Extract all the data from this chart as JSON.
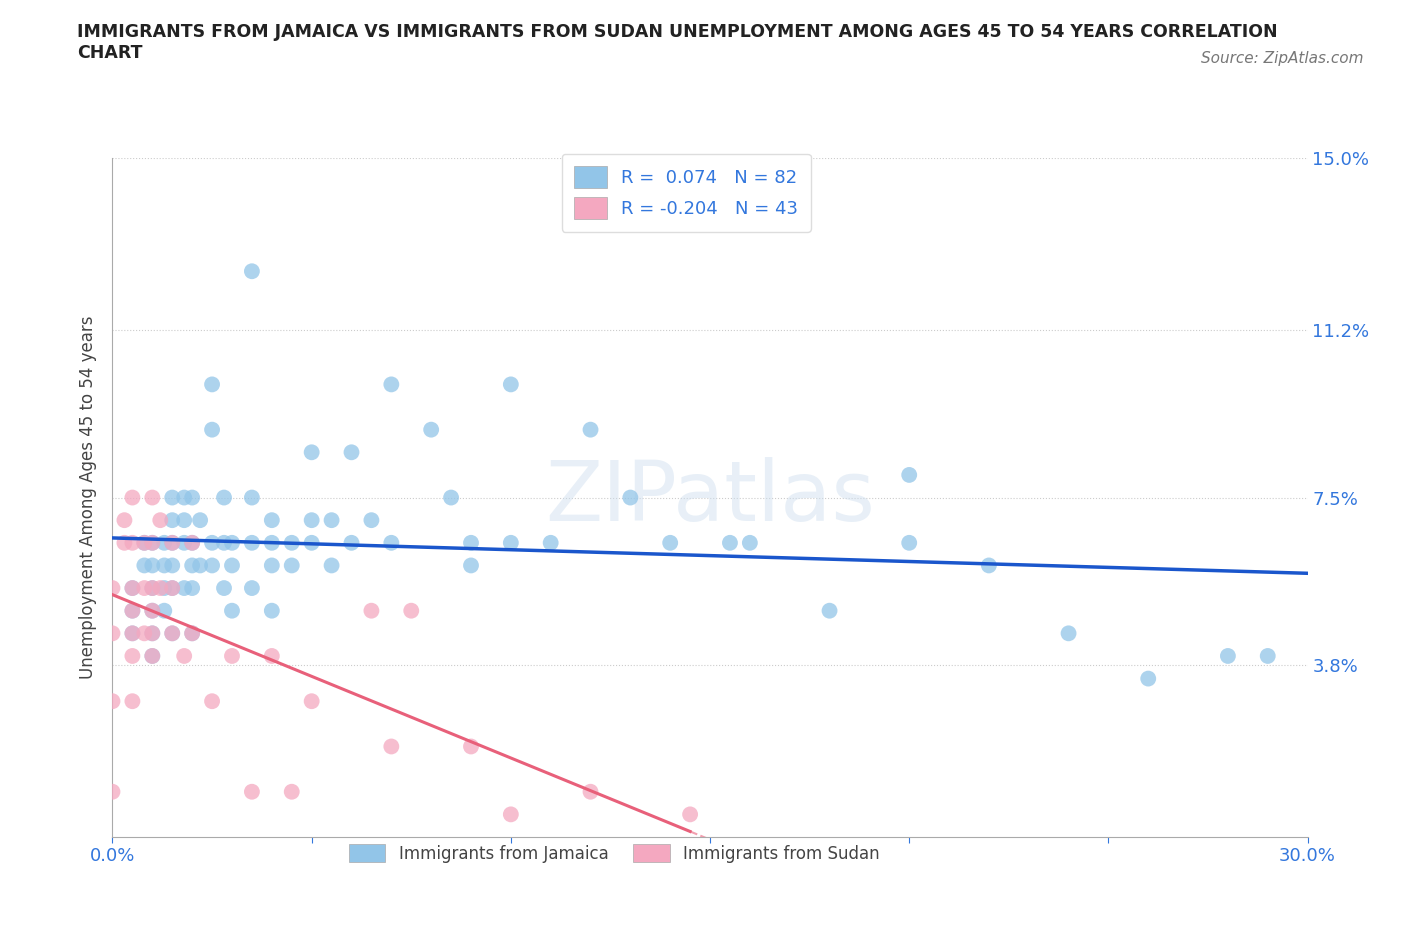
{
  "title": "IMMIGRANTS FROM JAMAICA VS IMMIGRANTS FROM SUDAN UNEMPLOYMENT AMONG AGES 45 TO 54 YEARS CORRELATION\nCHART",
  "source": "Source: ZipAtlas.com",
  "ylabel": "Unemployment Among Ages 45 to 54 years",
  "xlim": [
    0.0,
    0.3
  ],
  "ylim": [
    0.0,
    0.15
  ],
  "R_jamaica": 0.074,
  "N_jamaica": 82,
  "R_sudan": -0.204,
  "N_sudan": 43,
  "color_jamaica": "#92C5E8",
  "color_sudan": "#F4A8C0",
  "color_jamaica_line": "#1A56CC",
  "color_sudan_line": "#E8607A",
  "background_color": "#FFFFFF",
  "watermark": "ZIPatlas",
  "jamaica_x": [
    0.005,
    0.005,
    0.005,
    0.008,
    0.008,
    0.01,
    0.01,
    0.01,
    0.01,
    0.01,
    0.01,
    0.013,
    0.013,
    0.013,
    0.013,
    0.015,
    0.015,
    0.015,
    0.015,
    0.015,
    0.015,
    0.018,
    0.018,
    0.018,
    0.018,
    0.02,
    0.02,
    0.02,
    0.02,
    0.02,
    0.022,
    0.022,
    0.025,
    0.025,
    0.025,
    0.025,
    0.028,
    0.028,
    0.028,
    0.03,
    0.03,
    0.03,
    0.035,
    0.035,
    0.035,
    0.035,
    0.04,
    0.04,
    0.04,
    0.04,
    0.045,
    0.045,
    0.05,
    0.05,
    0.05,
    0.055,
    0.055,
    0.06,
    0.06,
    0.065,
    0.07,
    0.07,
    0.08,
    0.085,
    0.09,
    0.09,
    0.1,
    0.1,
    0.11,
    0.12,
    0.13,
    0.14,
    0.155,
    0.16,
    0.18,
    0.2,
    0.2,
    0.22,
    0.24,
    0.26,
    0.28,
    0.29
  ],
  "jamaica_y": [
    0.055,
    0.05,
    0.045,
    0.065,
    0.06,
    0.065,
    0.06,
    0.055,
    0.05,
    0.045,
    0.04,
    0.065,
    0.06,
    0.055,
    0.05,
    0.075,
    0.07,
    0.065,
    0.06,
    0.055,
    0.045,
    0.075,
    0.07,
    0.065,
    0.055,
    0.075,
    0.065,
    0.06,
    0.055,
    0.045,
    0.07,
    0.06,
    0.1,
    0.09,
    0.065,
    0.06,
    0.075,
    0.065,
    0.055,
    0.065,
    0.06,
    0.05,
    0.125,
    0.075,
    0.065,
    0.055,
    0.07,
    0.065,
    0.06,
    0.05,
    0.065,
    0.06,
    0.085,
    0.07,
    0.065,
    0.07,
    0.06,
    0.085,
    0.065,
    0.07,
    0.1,
    0.065,
    0.09,
    0.075,
    0.065,
    0.06,
    0.1,
    0.065,
    0.065,
    0.09,
    0.075,
    0.065,
    0.065,
    0.065,
    0.05,
    0.08,
    0.065,
    0.06,
    0.045,
    0.035,
    0.04,
    0.04
  ],
  "sudan_x": [
    0.0,
    0.0,
    0.0,
    0.0,
    0.003,
    0.003,
    0.005,
    0.005,
    0.005,
    0.005,
    0.005,
    0.005,
    0.005,
    0.008,
    0.008,
    0.008,
    0.01,
    0.01,
    0.01,
    0.01,
    0.01,
    0.01,
    0.012,
    0.012,
    0.015,
    0.015,
    0.015,
    0.018,
    0.02,
    0.02,
    0.025,
    0.03,
    0.035,
    0.04,
    0.045,
    0.05,
    0.065,
    0.07,
    0.075,
    0.09,
    0.1,
    0.12,
    0.145
  ],
  "sudan_y": [
    0.055,
    0.045,
    0.03,
    0.01,
    0.07,
    0.065,
    0.075,
    0.065,
    0.055,
    0.05,
    0.045,
    0.04,
    0.03,
    0.065,
    0.055,
    0.045,
    0.075,
    0.065,
    0.055,
    0.05,
    0.045,
    0.04,
    0.07,
    0.055,
    0.065,
    0.055,
    0.045,
    0.04,
    0.065,
    0.045,
    0.03,
    0.04,
    0.01,
    0.04,
    0.01,
    0.03,
    0.05,
    0.02,
    0.05,
    0.02,
    0.005,
    0.01,
    0.005
  ]
}
